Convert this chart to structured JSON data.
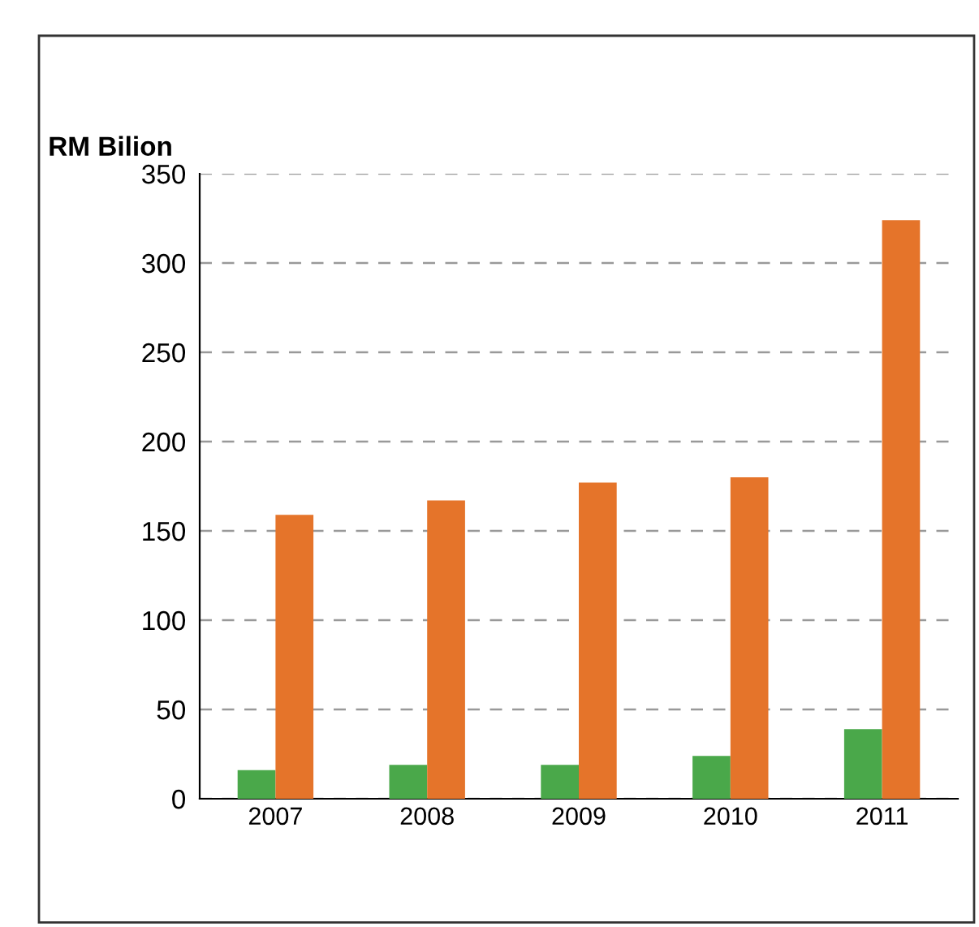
{
  "chart_data": {
    "type": "bar",
    "ylabel": "RM Bilion",
    "categories": [
      "2007",
      "2008",
      "2009",
      "2010",
      "2011"
    ],
    "series": [
      {
        "color": "#4aa84a",
        "values": [
          16,
          19,
          19,
          24,
          39
        ]
      },
      {
        "color": "#e5742a",
        "values": [
          159,
          167,
          177,
          180,
          324
        ]
      }
    ],
    "ylim": [
      0,
      350
    ],
    "yticks": [
      0,
      50,
      100,
      150,
      200,
      250,
      300,
      350
    ],
    "grid": "y"
  }
}
